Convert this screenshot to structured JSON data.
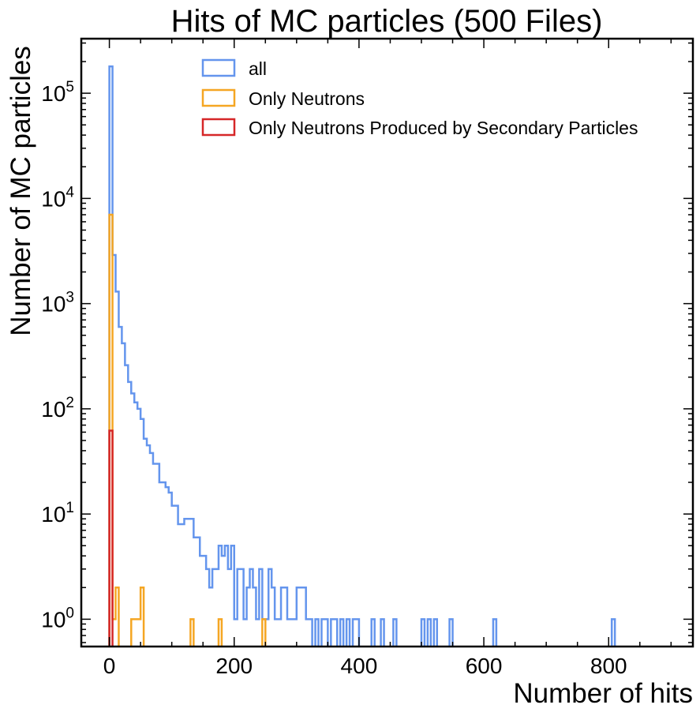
{
  "chart_data": {
    "type": "histogram",
    "title": "Hits of MC particles (500 Files)",
    "xlabel": "Number of hits",
    "ylabel": "Number of MC particles",
    "xlim": [
      -45,
      935
    ],
    "ylim": [
      0.55,
      330000
    ],
    "yscale": "log",
    "bin_width": 5,
    "grid": false,
    "legend_position": "top",
    "x_ticks": [
      {
        "value": 0,
        "label": "0"
      },
      {
        "value": 200,
        "label": "200"
      },
      {
        "value": 400,
        "label": "400"
      },
      {
        "value": 600,
        "label": "600"
      },
      {
        "value": 800,
        "label": "800"
      }
    ],
    "y_ticks": [
      {
        "value": 1,
        "base": "10",
        "exp": "0"
      },
      {
        "value": 10,
        "base": "10",
        "exp": "1"
      },
      {
        "value": 100,
        "base": "10",
        "exp": "2"
      },
      {
        "value": 1000,
        "base": "10",
        "exp": "3"
      },
      {
        "value": 10000,
        "base": "10",
        "exp": "4"
      },
      {
        "value": 100000,
        "base": "10",
        "exp": "5"
      }
    ],
    "series": [
      {
        "name": "all",
        "color": "#6495ED",
        "bins": [
          [
            0,
            180000
          ],
          [
            5,
            2900
          ],
          [
            10,
            1300
          ],
          [
            15,
            600
          ],
          [
            20,
            420
          ],
          [
            25,
            260
          ],
          [
            30,
            180
          ],
          [
            35,
            140
          ],
          [
            40,
            115
          ],
          [
            45,
            100
          ],
          [
            50,
            80
          ],
          [
            55,
            52
          ],
          [
            60,
            45
          ],
          [
            65,
            38
          ],
          [
            70,
            30
          ],
          [
            75,
            30
          ],
          [
            80,
            20
          ],
          [
            85,
            20
          ],
          [
            90,
            18
          ],
          [
            95,
            16
          ],
          [
            100,
            12
          ],
          [
            105,
            12
          ],
          [
            110,
            8
          ],
          [
            115,
            8
          ],
          [
            120,
            9
          ],
          [
            125,
            9
          ],
          [
            130,
            9
          ],
          [
            135,
            6
          ],
          [
            140,
            6
          ],
          [
            145,
            4
          ],
          [
            150,
            4
          ],
          [
            155,
            3
          ],
          [
            160,
            2
          ],
          [
            165,
            3
          ],
          [
            170,
            3
          ],
          [
            175,
            5
          ],
          [
            180,
            4
          ],
          [
            185,
            5
          ],
          [
            190,
            3
          ],
          [
            195,
            5
          ],
          [
            200,
            1
          ],
          [
            205,
            3
          ],
          [
            210,
            3
          ],
          [
            215,
            1
          ],
          [
            220,
            2
          ],
          [
            225,
            3
          ],
          [
            230,
            2
          ],
          [
            235,
            1
          ],
          [
            240,
            3
          ],
          [
            245,
            1
          ],
          [
            250,
            1
          ],
          [
            255,
            3
          ],
          [
            260,
            2
          ],
          [
            265,
            1
          ],
          [
            270,
            1
          ],
          [
            275,
            2
          ],
          [
            280,
            2
          ],
          [
            285,
            1
          ],
          [
            290,
            1
          ],
          [
            295,
            1
          ],
          [
            300,
            2
          ],
          [
            305,
            2
          ],
          [
            310,
            2
          ],
          [
            315,
            1
          ],
          [
            320,
            1
          ],
          [
            330,
            1
          ],
          [
            340,
            1
          ],
          [
            345,
            1
          ],
          [
            355,
            1
          ],
          [
            360,
            1
          ],
          [
            370,
            1
          ],
          [
            380,
            1
          ],
          [
            390,
            1
          ],
          [
            395,
            1
          ],
          [
            420,
            1
          ],
          [
            435,
            1
          ],
          [
            455,
            1
          ],
          [
            500,
            1
          ],
          [
            510,
            1
          ],
          [
            520,
            1
          ],
          [
            545,
            1
          ],
          [
            615,
            1
          ],
          [
            805,
            1
          ]
        ]
      },
      {
        "name": "Only Neutrons",
        "color": "#F5A623",
        "bins": [
          [
            0,
            7000
          ],
          [
            5,
            1
          ],
          [
            10,
            2
          ],
          [
            15,
            0
          ],
          [
            20,
            0
          ],
          [
            25,
            0
          ],
          [
            30,
            0
          ],
          [
            35,
            1
          ],
          [
            40,
            1
          ],
          [
            45,
            1
          ],
          [
            50,
            2
          ],
          [
            130,
            1
          ],
          [
            175,
            1
          ],
          [
            245,
            1
          ]
        ]
      },
      {
        "name": "Only Neutrons Produced by Secondary Particles",
        "color": "#D62728",
        "bins": [
          [
            0,
            62
          ]
        ]
      }
    ]
  }
}
